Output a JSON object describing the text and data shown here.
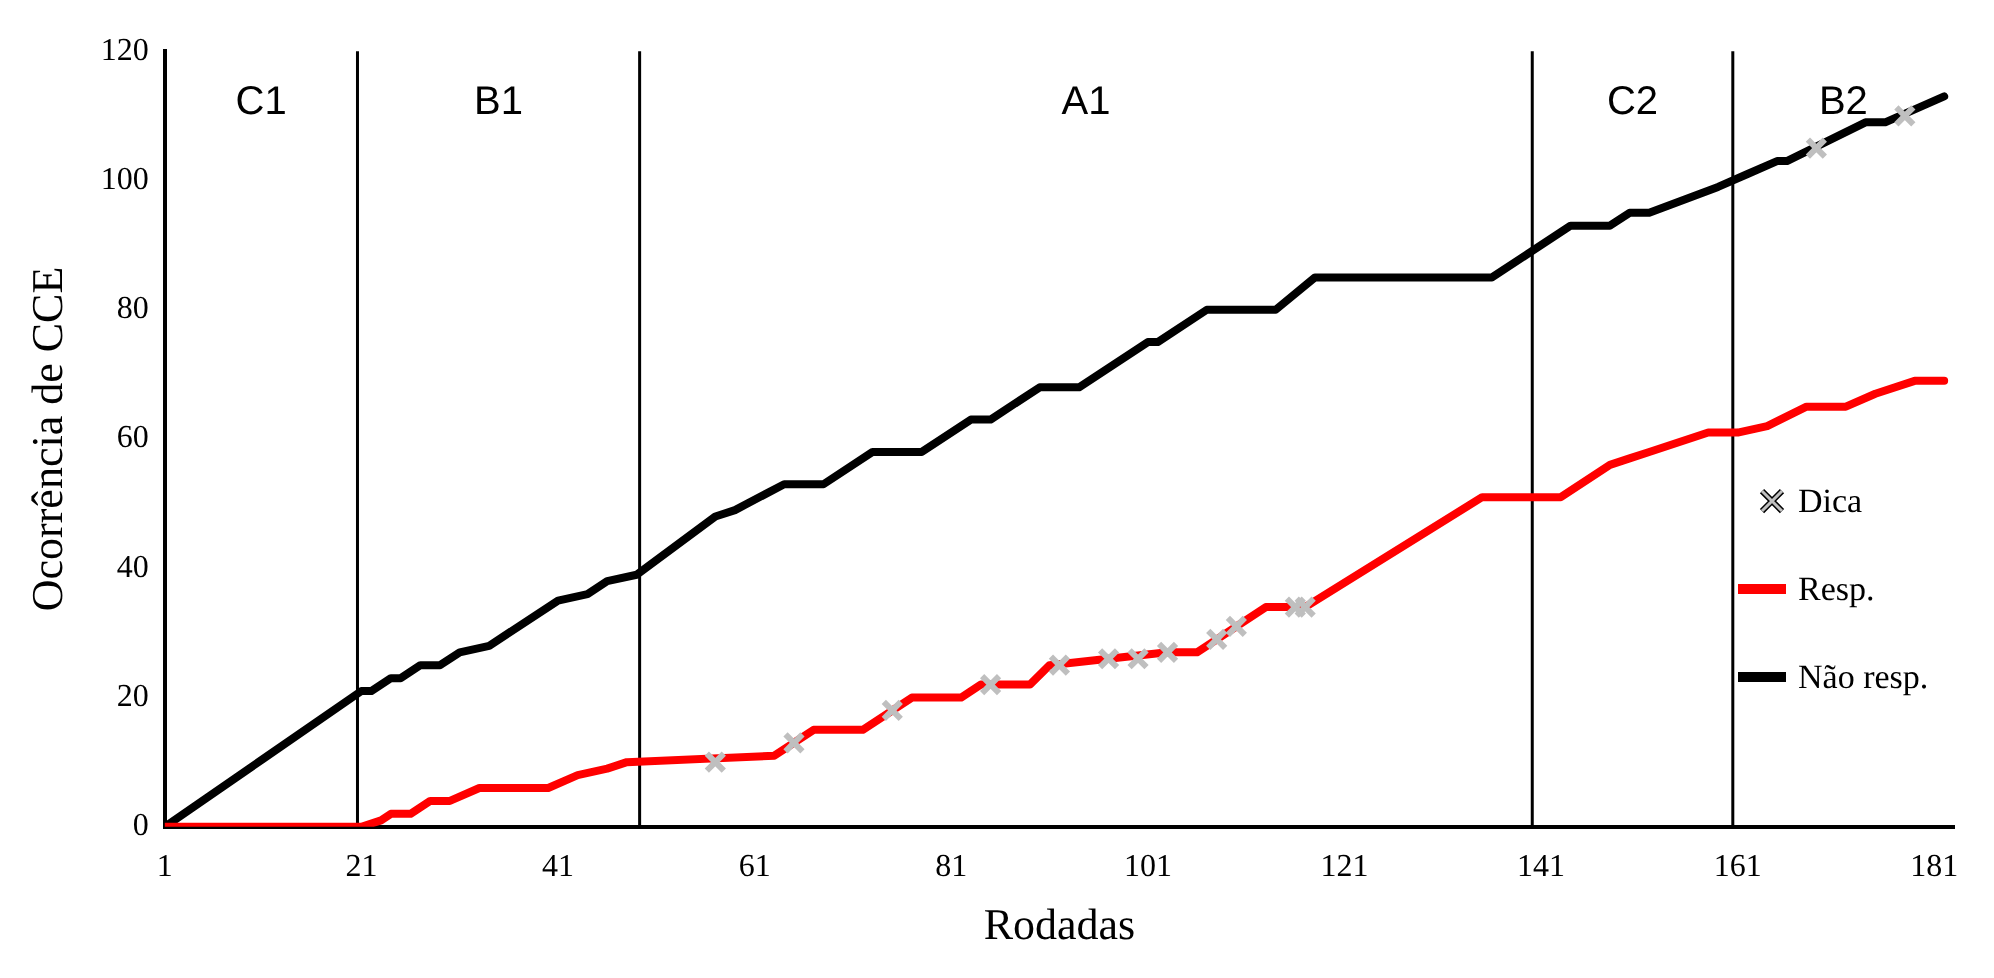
{
  "chart_data": {
    "type": "line",
    "xlabel": "Rodadas",
    "ylabel": "Ocorrência de CCE",
    "xlim": [
      1,
      183
    ],
    "xticks": [
      1,
      21,
      41,
      61,
      81,
      101,
      121,
      141,
      161,
      181
    ],
    "ylim": [
      0,
      120
    ],
    "yticks": [
      0,
      20,
      40,
      60,
      80,
      100,
      120
    ],
    "grid": false,
    "legend": "right",
    "line_style": "solid",
    "marker": "none",
    "series": [
      {
        "name": "Dica",
        "type": "scatter",
        "marker": "cross",
        "color": "#bfbfbf",
        "x": [
          57,
          65,
          75,
          85,
          92,
          97,
          100,
          103,
          108,
          110,
          116,
          117,
          169,
          178
        ],
        "values": [
          10,
          13,
          18,
          22,
          25,
          26,
          26,
          27,
          29,
          31,
          34,
          34,
          105,
          110
        ]
      },
      {
        "name": "Resp.",
        "type": "line",
        "color": "#ff0000",
        "x": [
          1,
          21,
          23,
          24,
          26,
          28,
          30,
          33,
          40,
          43,
          46,
          48,
          63,
          67,
          72,
          77,
          82,
          84,
          89,
          91,
          97,
          103,
          106,
          113,
          117,
          135,
          143,
          148,
          150,
          152,
          154,
          158,
          161,
          164,
          168,
          172,
          175,
          179,
          182
        ],
        "values": [
          0,
          0,
          1,
          2,
          2,
          4,
          4,
          6,
          6,
          8,
          9,
          10,
          11,
          15,
          15,
          20,
          20,
          22,
          22,
          25,
          26,
          27,
          27,
          34,
          34,
          51,
          51,
          56,
          57,
          58,
          59,
          61,
          61,
          62,
          65,
          65,
          67,
          69,
          69
        ]
      },
      {
        "name": "Não resp.",
        "type": "line",
        "color": "#000000",
        "x": [
          1,
          21,
          22,
          24,
          25,
          27,
          29,
          31,
          34,
          41,
          44,
          46,
          49,
          57,
          59,
          64,
          68,
          73,
          78,
          83,
          85,
          90,
          94,
          101,
          102,
          107,
          114,
          118,
          136,
          144,
          148,
          150,
          152,
          159,
          162,
          165,
          166,
          174,
          176,
          182
        ],
        "values": [
          0,
          21,
          21,
          23,
          23,
          25,
          25,
          27,
          28,
          35,
          36,
          38,
          39,
          48,
          49,
          53,
          53,
          58,
          58,
          63,
          63,
          68,
          68,
          75,
          75,
          80,
          80,
          85,
          85,
          93,
          93,
          95,
          95,
          99,
          101,
          103,
          103,
          109,
          109,
          113
        ]
      }
    ],
    "ref_lines": [
      {
        "axis": "x",
        "value": 20.6,
        "color": "#000000"
      },
      {
        "axis": "x",
        "value": 49.3,
        "color": "#000000"
      },
      {
        "axis": "x",
        "value": 140.1,
        "color": "#000000"
      },
      {
        "axis": "x",
        "value": 160.5,
        "color": "#000000"
      }
    ],
    "annotations": [
      "C1",
      "B1",
      "A1",
      "C2",
      "B2"
    ]
  }
}
